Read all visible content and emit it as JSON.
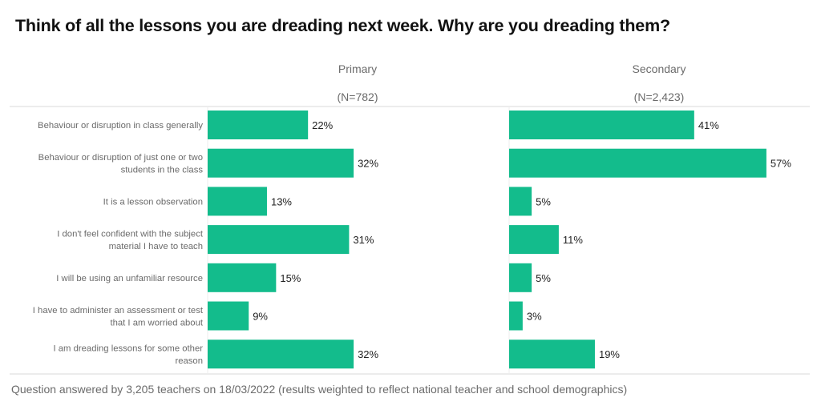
{
  "chart_data": {
    "type": "bar",
    "orientation": "horizontal",
    "title": "Think of all the lessons you are dreading next week. Why are you dreading them?",
    "categories": [
      [
        "Behaviour or disruption in class generally"
      ],
      [
        "Behaviour or disruption of just one or two",
        "students in the class"
      ],
      [
        "It is a lesson observation"
      ],
      [
        "I don't feel confident with the subject",
        "material I have to teach"
      ],
      [
        "I will be using an unfamiliar resource"
      ],
      [
        "I have to administer an assessment or test",
        "that I am worried about"
      ],
      [
        "I am dreading lessons for some other",
        "reason"
      ]
    ],
    "series": [
      {
        "name": "Primary",
        "n_label": "(N=782)",
        "values": [
          22,
          32,
          13,
          31,
          15,
          9,
          32
        ]
      },
      {
        "name": "Secondary",
        "n_label": "(N=2,423)",
        "values": [
          41,
          57,
          5,
          11,
          5,
          3,
          19
        ]
      }
    ],
    "value_suffix": "%",
    "xlabel": "",
    "ylabel": "",
    "xlim": [
      0,
      60
    ],
    "grid": false,
    "legend": "none (panel headers)",
    "bar_color": "#13bc8c",
    "footnote": "Question answered by 3,205 teachers on 18/03/2022 (results weighted to reflect national teacher and school demographics)"
  }
}
